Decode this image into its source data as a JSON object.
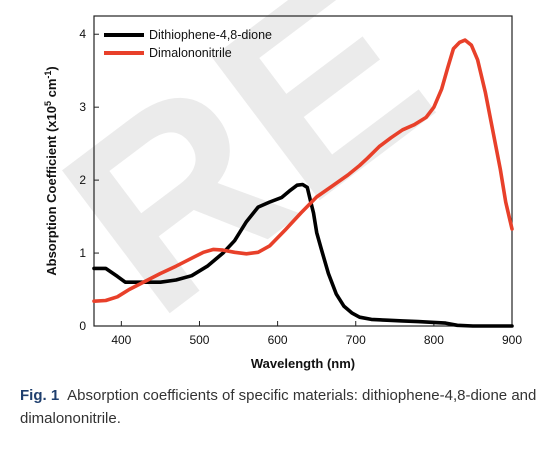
{
  "chart_data": {
    "type": "line",
    "title": "",
    "xlabel": "Wavelength (nm)",
    "ylabel_main": "Absorption Coefficient (x10",
    "ylabel_sup1": "5",
    "ylabel_mid": " cm",
    "ylabel_sup2": "-1",
    "ylabel_end": ")",
    "xlim": [
      365,
      900
    ],
    "ylim": [
      0,
      4.25
    ],
    "xticks": [
      "400",
      "500",
      "600",
      "700",
      "800",
      "900"
    ],
    "yticks": [
      "0",
      "1",
      "2",
      "3",
      "4"
    ],
    "grid": false,
    "legend_position": "top-left",
    "series": [
      {
        "name": "Dithiophene-4,8-dione",
        "color": "#000000",
        "points": [
          [
            365,
            0.79
          ],
          [
            380,
            0.79
          ],
          [
            395,
            0.68
          ],
          [
            405,
            0.6
          ],
          [
            420,
            0.6
          ],
          [
            450,
            0.6
          ],
          [
            470,
            0.63
          ],
          [
            490,
            0.69
          ],
          [
            510,
            0.82
          ],
          [
            530,
            1.0
          ],
          [
            545,
            1.17
          ],
          [
            560,
            1.43
          ],
          [
            575,
            1.63
          ],
          [
            590,
            1.7
          ],
          [
            605,
            1.76
          ],
          [
            615,
            1.85
          ],
          [
            625,
            1.93
          ],
          [
            632,
            1.94
          ],
          [
            638,
            1.9
          ],
          [
            642,
            1.72
          ],
          [
            646,
            1.55
          ],
          [
            650,
            1.28
          ],
          [
            656,
            1.05
          ],
          [
            665,
            0.72
          ],
          [
            675,
            0.44
          ],
          [
            685,
            0.27
          ],
          [
            695,
            0.18
          ],
          [
            705,
            0.12
          ],
          [
            720,
            0.09
          ],
          [
            740,
            0.08
          ],
          [
            760,
            0.07
          ],
          [
            780,
            0.06
          ],
          [
            800,
            0.05
          ],
          [
            815,
            0.04
          ],
          [
            830,
            0.01
          ],
          [
            850,
            0.0
          ],
          [
            900,
            0.0
          ]
        ]
      },
      {
        "name": "Dimalononitrile",
        "color": "#e8402a",
        "points": [
          [
            365,
            0.34
          ],
          [
            380,
            0.35
          ],
          [
            395,
            0.4
          ],
          [
            410,
            0.5
          ],
          [
            430,
            0.61
          ],
          [
            450,
            0.72
          ],
          [
            470,
            0.82
          ],
          [
            490,
            0.93
          ],
          [
            505,
            1.01
          ],
          [
            518,
            1.05
          ],
          [
            530,
            1.04
          ],
          [
            545,
            1.01
          ],
          [
            560,
            0.99
          ],
          [
            575,
            1.01
          ],
          [
            590,
            1.1
          ],
          [
            610,
            1.32
          ],
          [
            630,
            1.55
          ],
          [
            650,
            1.77
          ],
          [
            670,
            1.92
          ],
          [
            690,
            2.07
          ],
          [
            705,
            2.2
          ],
          [
            715,
            2.3
          ],
          [
            730,
            2.46
          ],
          [
            745,
            2.58
          ],
          [
            760,
            2.69
          ],
          [
            775,
            2.76
          ],
          [
            790,
            2.86
          ],
          [
            800,
            3.0
          ],
          [
            810,
            3.25
          ],
          [
            818,
            3.55
          ],
          [
            825,
            3.8
          ],
          [
            833,
            3.89
          ],
          [
            840,
            3.92
          ],
          [
            848,
            3.85
          ],
          [
            856,
            3.65
          ],
          [
            866,
            3.2
          ],
          [
            876,
            2.65
          ],
          [
            885,
            2.15
          ],
          [
            892,
            1.7
          ],
          [
            900,
            1.33
          ]
        ]
      }
    ]
  },
  "watermark_text": "RE",
  "caption": {
    "label": "Fig. 1",
    "text": "Absorption coefficients of specific materials: dithiophene-4,8-dione and dimalononitrile."
  }
}
